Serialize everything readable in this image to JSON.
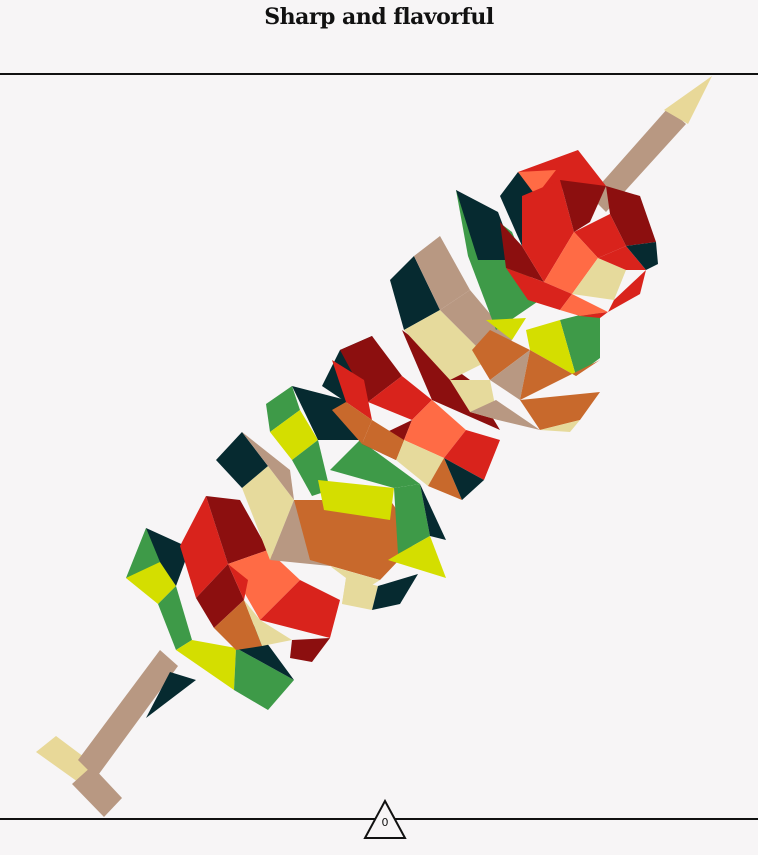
{
  "header": {
    "title": "Sharp and flavorful"
  },
  "illustration": {
    "subject": "low-poly kebab skewer",
    "palette": {
      "background": "#f7f5f6",
      "stick": "#b89882",
      "stick_tip": "#e8d898",
      "dark_teal": "#062a30",
      "green": "#3e9a48",
      "lime": "#d4de00",
      "tan": "#b89882",
      "cream": "#e6da9c",
      "orange_brown": "#c8692c",
      "red": "#d9231c",
      "dark_red": "#8c0f0f",
      "coral": "#ff6b45"
    }
  },
  "footer": {
    "page_number": "0"
  }
}
